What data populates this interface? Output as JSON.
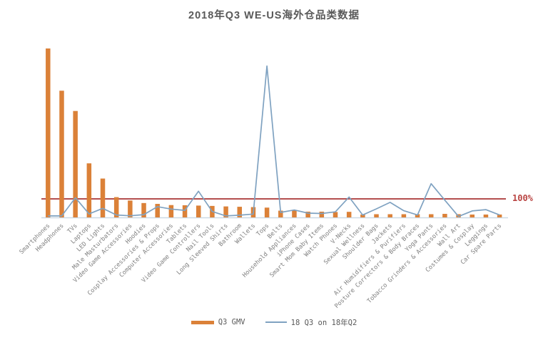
{
  "title": "2018年Q3 WE-US海外仓品类数据",
  "reference_line_label": "100%",
  "legend": {
    "bar_label": "Q3 GMV",
    "line_label": "18 Q3 on 18年Q2"
  },
  "colors": {
    "bar": "#DB8138",
    "line": "#7FA2C1",
    "reference_line": "#A93636",
    "reference_label_text": "#B94442",
    "title_text": "#595959",
    "axis_label_text": "#7F7F7F",
    "baseline": "#CCD9E5"
  },
  "chart_data": {
    "type": "combo (bar + line)",
    "title": "2018年Q3 WE-US海外仓品类数据",
    "categories": [
      "Smartphones",
      "Headphones",
      "TVs",
      "Laptops",
      "LED Lights",
      "Male Masturbators",
      "Video Game Accessories",
      "Hoodies",
      "Cosplay Accessories & Props",
      "Computer Accessories",
      "Tablets",
      "Video Game Controllers",
      "Nail Tools",
      "Long Sleeved Shirts",
      "Bathroom",
      "Wallets",
      "Tops",
      "Belts",
      "Household Appliances",
      "iPhone Cases",
      "Smart Mom Baby Items",
      "Watch Phones",
      "V-Necks",
      "Sexual Wellness",
      "Shoulder Bags",
      "Jackets",
      "Air Humidifiers & Purifiers",
      "Posture Correctors & Body Braces",
      "Yoga Pants",
      "Tobacco Grinders & Accessories",
      "Wall Art",
      "Costumes & Cosplay",
      "Leggings",
      "Car Spare Parts"
    ],
    "series": [
      {
        "name": "Q3 GMV",
        "type": "bar",
        "unit": "relative GMV index (left axis unlabeled, max bar = 100)",
        "values": [
          100,
          75,
          63,
          32,
          23,
          12,
          10,
          8.5,
          8,
          7.3,
          7.2,
          7,
          6.8,
          6.5,
          6.3,
          6.1,
          5.8,
          4,
          4.2,
          3.4,
          3.4,
          3.2,
          3.3,
          1.7,
          1.9,
          1.9,
          1.9,
          1.9,
          1.9,
          2.1,
          1.9,
          1.7,
          1.7,
          1.7
        ]
      },
      {
        "name": "18 Q3 on 18年Q2",
        "type": "line",
        "unit": "percent",
        "values": [
          8,
          8,
          106,
          19,
          49,
          13,
          9,
          15,
          58,
          45,
          38,
          141,
          32,
          8,
          12,
          18,
          817,
          27,
          40,
          23,
          21,
          30,
          110,
          13,
          46,
          81,
          36,
          13,
          182,
          93,
          5,
          35,
          42,
          13
        ]
      }
    ],
    "reference_line": {
      "value_pct": 100,
      "label": "100%"
    },
    "grid": false,
    "y_axis_tick_labels_shown": false,
    "x_label_rotation_deg": -45,
    "legend_position": "bottom-center"
  }
}
